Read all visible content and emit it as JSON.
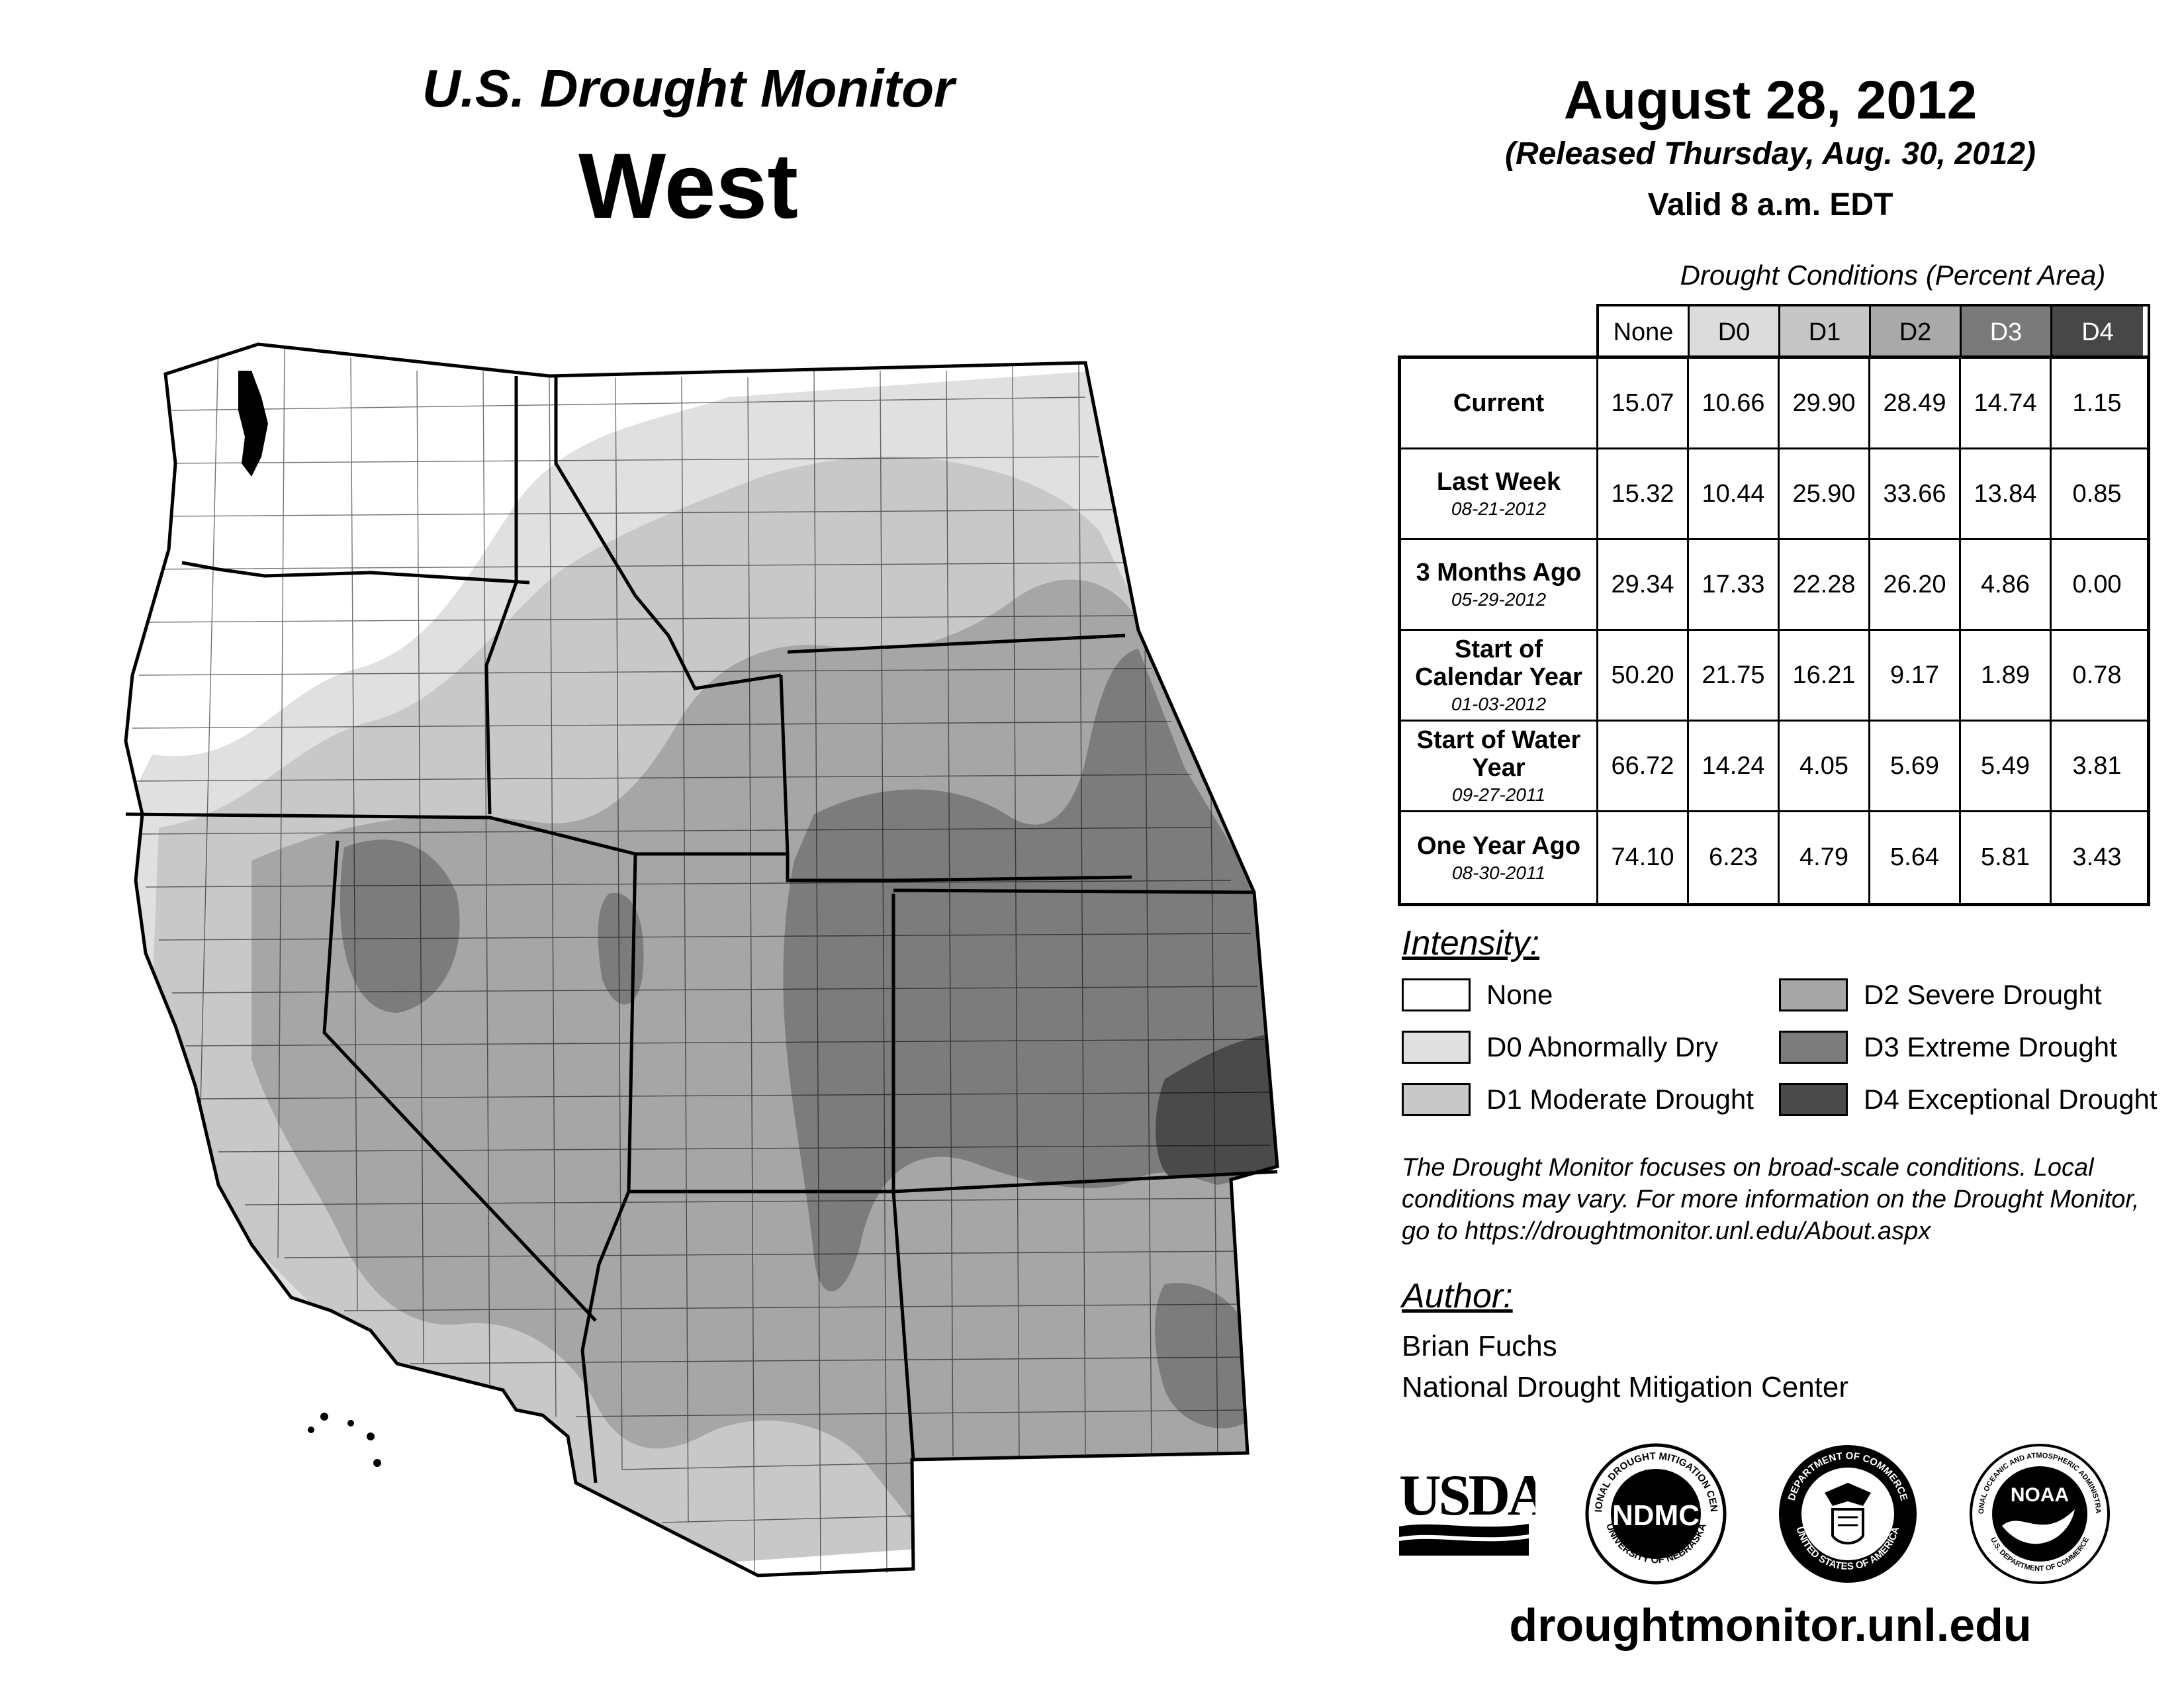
{
  "header": {
    "title": "U.S. Drought Monitor",
    "region": "West",
    "date": "August 28, 2012",
    "released": "(Released Thursday, Aug. 30, 2012)",
    "valid": "Valid 8 a.m. EDT"
  },
  "table": {
    "title": "Drought Conditions (Percent Area)",
    "columns": [
      "None",
      "D0",
      "D1",
      "D2",
      "D3",
      "D4"
    ],
    "column_colors": [
      "#ffffff",
      "#dcdcdc",
      "#c6c6c6",
      "#a9a9a9",
      "#7a7a7a",
      "#474747"
    ],
    "rows": [
      {
        "label": "Current",
        "date": "",
        "values": [
          "15.07",
          "10.66",
          "29.90",
          "28.49",
          "14.74",
          "1.15"
        ]
      },
      {
        "label": "Last Week",
        "date": "08-21-2012",
        "values": [
          "15.32",
          "10.44",
          "25.90",
          "33.66",
          "13.84",
          "0.85"
        ]
      },
      {
        "label": "3 Months Ago",
        "date": "05-29-2012",
        "values": [
          "29.34",
          "17.33",
          "22.28",
          "26.20",
          "4.86",
          "0.00"
        ]
      },
      {
        "label": "Start of Calendar Year",
        "date": "01-03-2012",
        "values": [
          "50.20",
          "21.75",
          "16.21",
          "9.17",
          "1.89",
          "0.78"
        ]
      },
      {
        "label": "Start of Water Year",
        "date": "09-27-2011",
        "values": [
          "66.72",
          "14.24",
          "4.05",
          "5.69",
          "5.49",
          "3.81"
        ]
      },
      {
        "label": "One Year Ago",
        "date": "08-30-2011",
        "values": [
          "74.10",
          "6.23",
          "4.79",
          "5.64",
          "5.81",
          "3.43"
        ]
      }
    ]
  },
  "legend": {
    "heading": "Intensity:",
    "items": [
      {
        "label": "None",
        "color": "#ffffff"
      },
      {
        "label": "D0 Abnormally Dry",
        "color": "#e0e0e0"
      },
      {
        "label": "D1 Moderate Drought",
        "color": "#c8c8c8"
      },
      {
        "label": "D2 Severe Drought",
        "color": "#a6a6a6"
      },
      {
        "label": "D3 Extreme Drought",
        "color": "#7c7c7c"
      },
      {
        "label": "D4 Exceptional Drought",
        "color": "#4a4a4a"
      }
    ]
  },
  "note": "The Drought Monitor focuses on broad-scale conditions. Local conditions may vary. For more information on the Drought Monitor, go to https://droughtmonitor.unl.edu/About.aspx",
  "author": {
    "heading": "Author:",
    "name": "Brian Fuchs",
    "org": "National Drought Mitigation Center"
  },
  "logos": {
    "usda": "USDA",
    "ndmc": "NDMC",
    "ndmc_ring_top": "NATIONAL DROUGHT MITIGATION CENTER",
    "ndmc_ring_bottom": "UNIVERSITY OF NEBRASKA",
    "doc_ring_top": "DEPARTMENT OF COMMERCE",
    "doc_ring_bottom": "UNITED STATES OF AMERICA",
    "noaa": "NOAA",
    "noaa_ring_top": "NATIONAL OCEANIC AND ATMOSPHERIC ADMINISTRATION",
    "noaa_ring_bottom": "U.S. DEPARTMENT OF COMMERCE"
  },
  "url": "droughtmonitor.unl.edu"
}
